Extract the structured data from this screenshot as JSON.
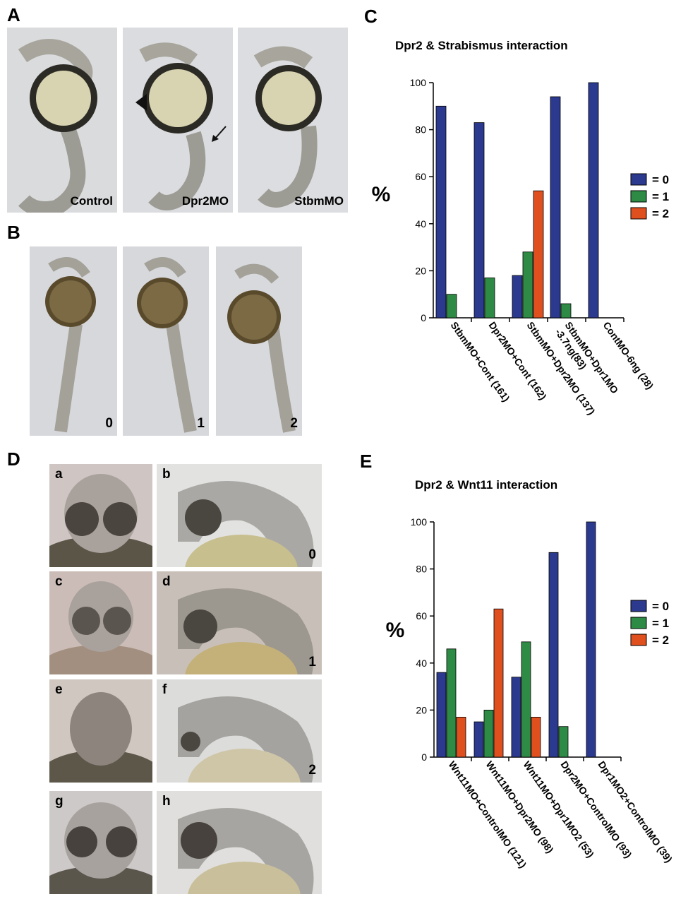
{
  "panels": {
    "A": {
      "label": "A",
      "captions": [
        "Control",
        "Dpr2MO",
        "StbmMO"
      ]
    },
    "B": {
      "label": "B",
      "captions": [
        "0",
        "1",
        "2"
      ]
    },
    "C": {
      "label": "C"
    },
    "D": {
      "label": "D",
      "sublabels": [
        "a",
        "b",
        "c",
        "d",
        "e",
        "f",
        "g",
        "h"
      ],
      "scores": [
        "0",
        "1",
        "2"
      ]
    },
    "E": {
      "label": "E"
    }
  },
  "colors": {
    "score0": "#2b3a8e",
    "score1": "#2e8b45",
    "score2": "#e0501e"
  },
  "chart_data": [
    {
      "type": "bar",
      "title": "Dpr2 & Strabismus interaction",
      "ylabel": "%",
      "ylim": [
        0,
        100
      ],
      "yticks": [
        0,
        20,
        40,
        60,
        80,
        100
      ],
      "legend": [
        "= 0",
        "= 1",
        "= 2"
      ],
      "legend_position": "right",
      "categories": [
        "StbmMO+Cont (161)",
        "Dpr2MO+Cont (162)",
        "StbmMO+Dpr2MO (137)",
        "StbmMO+Dpr1MO -3.7ng(83)",
        "ContMO-6ng (28)"
      ],
      "series": [
        {
          "name": "= 0",
          "values": [
            90,
            83,
            18,
            94,
            100
          ]
        },
        {
          "name": "= 1",
          "values": [
            10,
            17,
            28,
            6,
            0
          ]
        },
        {
          "name": "= 2",
          "values": [
            0,
            0,
            54,
            0,
            0
          ]
        }
      ]
    },
    {
      "type": "bar",
      "title": "Dpr2 & Wnt11 interaction",
      "ylabel": "%",
      "ylim": [
        0,
        100
      ],
      "yticks": [
        0,
        20,
        40,
        60,
        80,
        100
      ],
      "legend": [
        "= 0",
        "= 1",
        "= 2"
      ],
      "legend_position": "right",
      "categories": [
        "Wnt11MO+ControlMO (121)",
        "Wnt11MO+Dpr2MO (98)",
        "Wnt11MO+Dpr1MO2 (53)",
        "Dpr2MO+ControlMO (93)",
        "Dpr1MO2+ControlMO (39)"
      ],
      "series": [
        {
          "name": "= 0",
          "values": [
            36,
            15,
            34,
            87,
            100
          ]
        },
        {
          "name": "= 1",
          "values": [
            46,
            20,
            49,
            13,
            0
          ]
        },
        {
          "name": "= 2",
          "values": [
            17,
            63,
            17,
            0,
            0
          ]
        }
      ]
    }
  ]
}
